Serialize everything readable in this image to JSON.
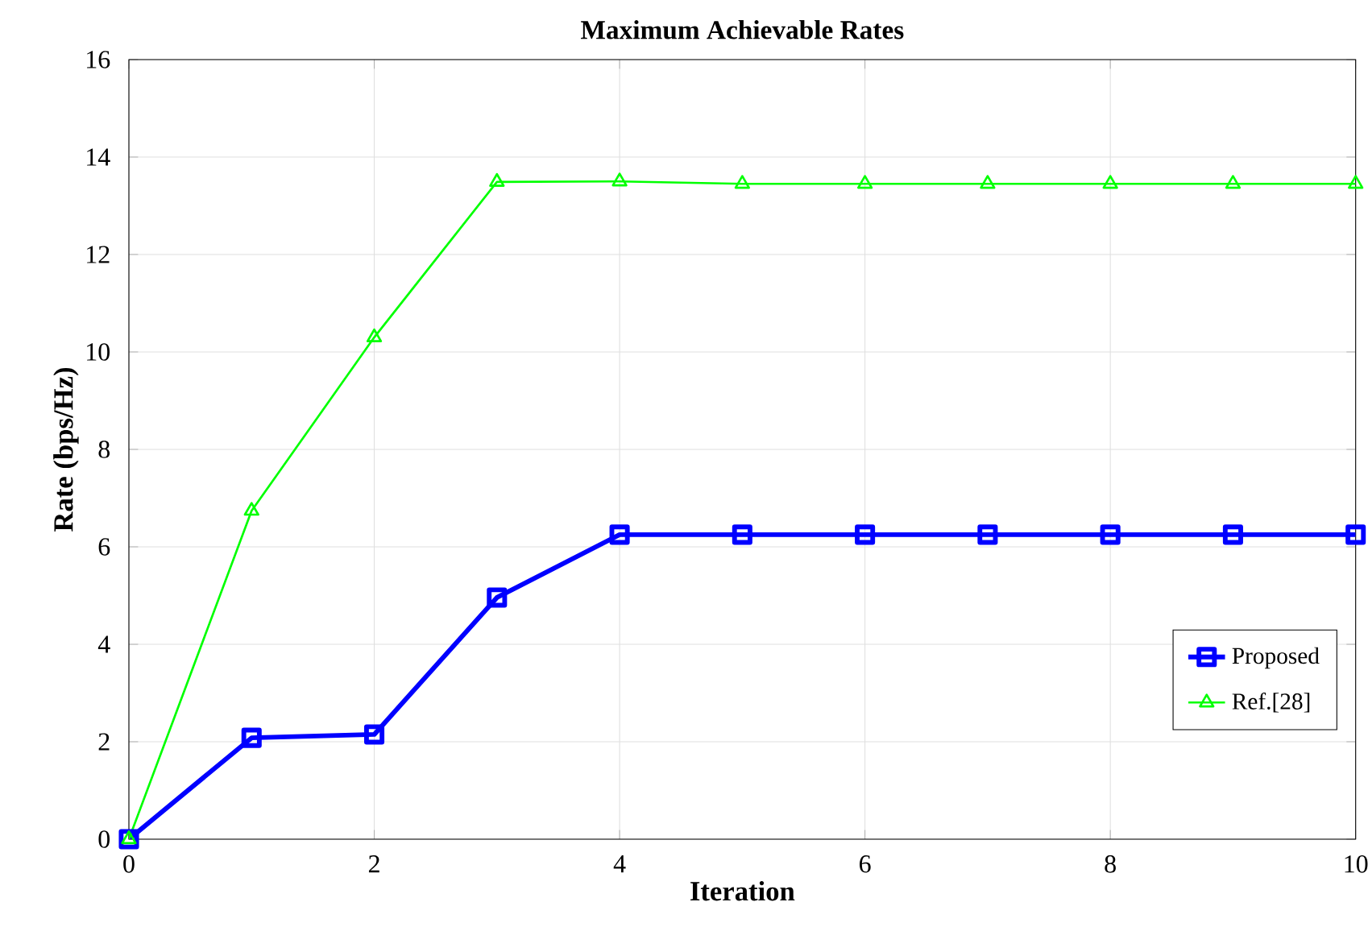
{
  "chart_data": {
    "type": "line",
    "title": "Maximum Achievable Rates",
    "xlabel": "Iteration",
    "ylabel": "Rate (bps/Hz)",
    "x": [
      0,
      1,
      2,
      3,
      4,
      5,
      6,
      7,
      8,
      9,
      10
    ],
    "series": [
      {
        "name": "Proposed",
        "color": "#0000ff",
        "marker": "square",
        "values": [
          0,
          2.08,
          2.15,
          4.96,
          6.25,
          6.25,
          6.25,
          6.25,
          6.25,
          6.25,
          6.25
        ]
      },
      {
        "name": "Ref.[28]",
        "color": "#00ff00",
        "marker": "triangle",
        "values": [
          0,
          6.74,
          10.3,
          13.49,
          13.5,
          13.45,
          13.45,
          13.45,
          13.45,
          13.45,
          13.45
        ]
      }
    ],
    "xlim": [
      0,
      10
    ],
    "ylim": [
      0,
      16
    ],
    "xticks": [
      0,
      2,
      4,
      6,
      8,
      10
    ],
    "yticks": [
      0,
      2,
      4,
      6,
      8,
      10,
      12,
      14,
      16
    ],
    "grid": true,
    "legend": "bottom right",
    "line_style": "solid"
  }
}
